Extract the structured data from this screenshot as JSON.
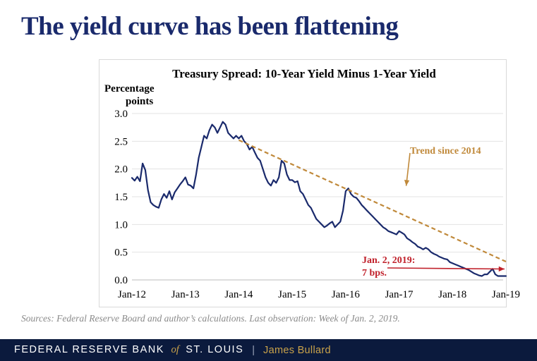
{
  "slide": {
    "title": "The yield curve has been flattening",
    "sources": "Sources: Federal Reserve Board and author’s calculations. Last observation: Week of Jan. 2, 2019."
  },
  "footer": {
    "org_part1": "FEDERAL RESERVE BANK",
    "org_of": "of",
    "org_part2": "ST. LOUIS",
    "separator": "|",
    "speaker": "James Bullard"
  },
  "colors": {
    "title": "#1a2a6c",
    "series": "#1a2a6c",
    "trend": "#c0893a",
    "annotation_red": "#c0202a",
    "footer_bg": "#0b1a3d",
    "footer_accent": "#c9a24a"
  },
  "chart_data": {
    "type": "line",
    "title": "Treasury Spread: 10-Year Yield Minus 1-Year Yield",
    "ylabel_lines": [
      "Percentage",
      "points"
    ],
    "xlabel": "",
    "ylim": [
      0.0,
      3.0
    ],
    "yticks": [
      0.0,
      0.5,
      1.0,
      1.5,
      2.0,
      2.5,
      3.0
    ],
    "ytick_labels": [
      "0.0",
      "0.5",
      "1.0",
      "1.5",
      "2.0",
      "2.5",
      "3.0"
    ],
    "xlim": [
      2012.0,
      2019.0
    ],
    "xticks": [
      2012,
      2013,
      2014,
      2015,
      2016,
      2017,
      2018,
      2019
    ],
    "xtick_labels": [
      "Jan-12",
      "Jan-13",
      "Jan-14",
      "Jan-15",
      "Jan-16",
      "Jan-17",
      "Jan-18",
      "Jan-19"
    ],
    "grid": true,
    "series": [
      {
        "name": "10-Year Yield Minus 1-Year Yield",
        "x": [
          2012.0,
          2012.05,
          2012.1,
          2012.15,
          2012.2,
          2012.25,
          2012.3,
          2012.35,
          2012.4,
          2012.45,
          2012.5,
          2012.55,
          2012.6,
          2012.65,
          2012.7,
          2012.75,
          2012.8,
          2012.85,
          2012.9,
          2012.95,
          2013.0,
          2013.05,
          2013.1,
          2013.15,
          2013.2,
          2013.25,
          2013.3,
          2013.35,
          2013.4,
          2013.45,
          2013.5,
          2013.55,
          2013.6,
          2013.65,
          2013.7,
          2013.75,
          2013.8,
          2013.85,
          2013.9,
          2013.95,
          2014.0,
          2014.05,
          2014.1,
          2014.15,
          2014.2,
          2014.25,
          2014.3,
          2014.35,
          2014.4,
          2014.45,
          2014.5,
          2014.55,
          2014.6,
          2014.65,
          2014.7,
          2014.75,
          2014.8,
          2014.85,
          2014.9,
          2014.95,
          2015.0,
          2015.05,
          2015.1,
          2015.15,
          2015.2,
          2015.25,
          2015.3,
          2015.35,
          2015.4,
          2015.45,
          2015.5,
          2015.55,
          2015.6,
          2015.65,
          2015.7,
          2015.75,
          2015.8,
          2015.85,
          2015.9,
          2015.95,
          2016.0,
          2016.05,
          2016.1,
          2016.15,
          2016.2,
          2016.25,
          2016.3,
          2016.35,
          2016.4,
          2016.45,
          2016.5,
          2016.55,
          2016.6,
          2016.65,
          2016.7,
          2016.75,
          2016.8,
          2016.85,
          2016.9,
          2016.95,
          2017.0,
          2017.05,
          2017.1,
          2017.15,
          2017.2,
          2017.25,
          2017.3,
          2017.35,
          2017.4,
          2017.45,
          2017.5,
          2017.55,
          2017.6,
          2017.65,
          2017.7,
          2017.75,
          2017.8,
          2017.85,
          2017.9,
          2017.95,
          2018.0,
          2018.05,
          2018.1,
          2018.15,
          2018.2,
          2018.25,
          2018.3,
          2018.35,
          2018.4,
          2018.45,
          2018.5,
          2018.55,
          2018.6,
          2018.65,
          2018.7,
          2018.75,
          2018.8,
          2018.85,
          2018.9,
          2018.95,
          2019.0
        ],
        "values": [
          1.84,
          1.79,
          1.86,
          1.78,
          2.1,
          1.98,
          1.62,
          1.4,
          1.35,
          1.32,
          1.3,
          1.45,
          1.55,
          1.48,
          1.6,
          1.45,
          1.58,
          1.65,
          1.72,
          1.78,
          1.85,
          1.72,
          1.7,
          1.65,
          1.9,
          2.2,
          2.4,
          2.6,
          2.55,
          2.7,
          2.8,
          2.75,
          2.65,
          2.75,
          2.85,
          2.8,
          2.65,
          2.6,
          2.55,
          2.6,
          2.55,
          2.6,
          2.5,
          2.45,
          2.35,
          2.4,
          2.3,
          2.2,
          2.15,
          2.0,
          1.85,
          1.75,
          1.7,
          1.8,
          1.75,
          1.85,
          2.15,
          2.1,
          1.9,
          1.8,
          1.8,
          1.76,
          1.78,
          1.6,
          1.55,
          1.45,
          1.35,
          1.3,
          1.2,
          1.1,
          1.05,
          1.0,
          0.95,
          0.98,
          1.02,
          1.05,
          0.95,
          1.0,
          1.05,
          1.25,
          1.6,
          1.65,
          1.55,
          1.5,
          1.48,
          1.42,
          1.35,
          1.3,
          1.25,
          1.2,
          1.15,
          1.1,
          1.05,
          1.0,
          0.95,
          0.92,
          0.88,
          0.86,
          0.84,
          0.82,
          0.88,
          0.85,
          0.82,
          0.75,
          0.72,
          0.68,
          0.65,
          0.6,
          0.58,
          0.55,
          0.58,
          0.55,
          0.5,
          0.47,
          0.45,
          0.42,
          0.4,
          0.38,
          0.37,
          0.32,
          0.3,
          0.28,
          0.26,
          0.24,
          0.22,
          0.2,
          0.18,
          0.15,
          0.12,
          0.1,
          0.08,
          0.07,
          0.1,
          0.1,
          0.15,
          0.2,
          0.1,
          0.07,
          0.07,
          0.07,
          0.07
        ],
        "color": "#1a2a6c"
      },
      {
        "name": "Trend since 2014",
        "x": [
          2014.0,
          2019.0
        ],
        "values": [
          2.52,
          0.33
        ],
        "style": "dashed",
        "color": "#c0893a"
      }
    ],
    "annotations": [
      {
        "id": "trend",
        "text": "Trend since 2014",
        "color": "#c0893a",
        "arrow_to": {
          "x": 2017.08,
          "y": 1.67
        }
      },
      {
        "id": "last",
        "lines": [
          "Jan. 2, 2019:",
          "7 bps."
        ],
        "color": "#c0202a",
        "arrow_to": {
          "x": 2019.0,
          "y": 0.07
        }
      }
    ]
  }
}
